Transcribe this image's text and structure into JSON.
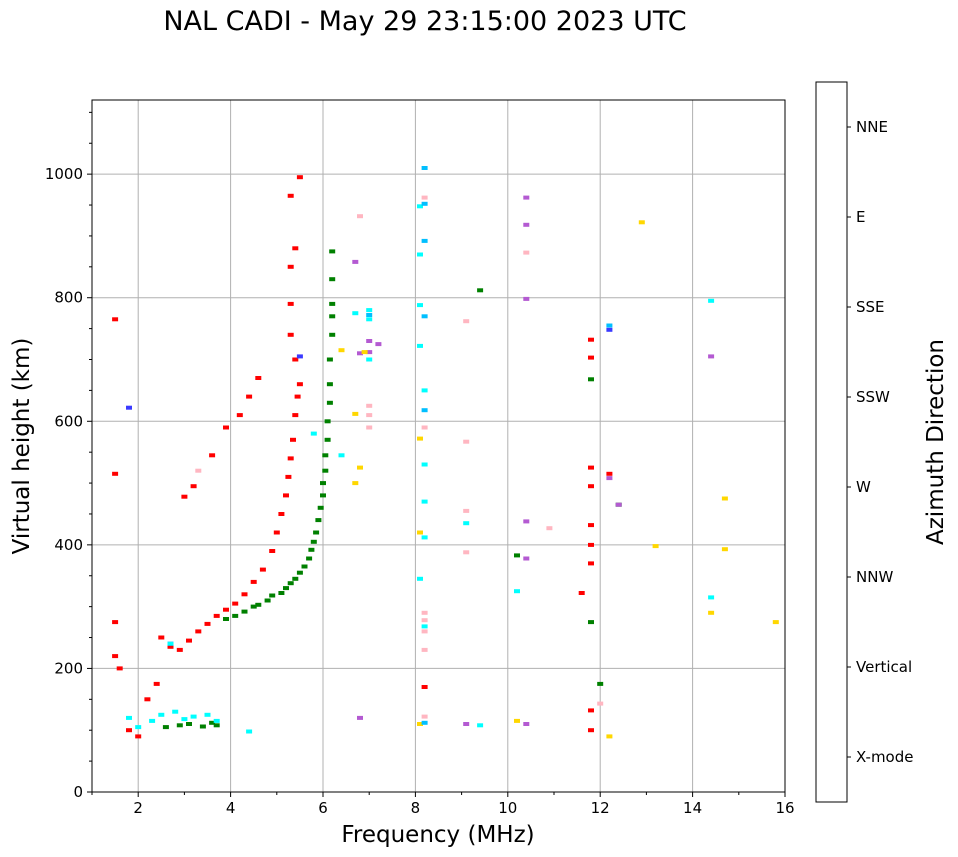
{
  "title": "NAL CADI - May 29 23:15:00 2023 UTC",
  "chart_data": {
    "type": "scatter",
    "title": "NAL CADI - May 29 23:15:00 2023 UTC",
    "xlabel": "Frequency (MHz)",
    "ylabel": "Virtual height (km)",
    "xlim": [
      1,
      16
    ],
    "ylim": [
      0,
      1120
    ],
    "xticks": [
      2,
      4,
      6,
      8,
      10,
      12,
      14,
      16
    ],
    "yticks": [
      0,
      200,
      400,
      600,
      800,
      1000
    ],
    "grid": true,
    "colorbar": {
      "label": "Azimuth Direction",
      "categories": [
        "X-mode",
        "Vertical",
        "NNW",
        "W",
        "SSW",
        "SSE",
        "E",
        "NNE"
      ],
      "colors": [
        "#008000",
        "#ff0000",
        "#3a3aff",
        "#b45ad2",
        "#ffb6c1",
        "#ffd700",
        "#00ffff",
        "#00bfff"
      ]
    },
    "series": [
      {
        "name": "X-mode",
        "points": [
          [
            2.6,
            105
          ],
          [
            2.9,
            108
          ],
          [
            3.1,
            110
          ],
          [
            3.4,
            106
          ],
          [
            3.6,
            112
          ],
          [
            3.7,
            108
          ],
          [
            3.9,
            280
          ],
          [
            4.1,
            285
          ],
          [
            4.3,
            292
          ],
          [
            4.5,
            300
          ],
          [
            4.6,
            303
          ],
          [
            4.8,
            310
          ],
          [
            4.9,
            318
          ],
          [
            5.1,
            322
          ],
          [
            5.2,
            330
          ],
          [
            5.3,
            338
          ],
          [
            5.4,
            345
          ],
          [
            5.5,
            355
          ],
          [
            5.6,
            365
          ],
          [
            5.7,
            378
          ],
          [
            5.75,
            392
          ],
          [
            5.8,
            405
          ],
          [
            5.85,
            420
          ],
          [
            5.9,
            440
          ],
          [
            5.95,
            460
          ],
          [
            6.0,
            480
          ],
          [
            6.0,
            500
          ],
          [
            6.05,
            520
          ],
          [
            6.05,
            545
          ],
          [
            6.1,
            570
          ],
          [
            6.1,
            600
          ],
          [
            6.15,
            630
          ],
          [
            6.15,
            660
          ],
          [
            6.15,
            700
          ],
          [
            6.2,
            740
          ],
          [
            6.2,
            770
          ],
          [
            6.2,
            790
          ],
          [
            6.2,
            830
          ],
          [
            6.2,
            875
          ],
          [
            9.4,
            812
          ],
          [
            10.2,
            383
          ],
          [
            11.8,
            668
          ],
          [
            11.8,
            275
          ],
          [
            12.4,
            465
          ],
          [
            12.0,
            175
          ]
        ]
      },
      {
        "name": "Vertical",
        "points": [
          [
            1.5,
            765
          ],
          [
            1.5,
            515
          ],
          [
            1.5,
            275
          ],
          [
            1.5,
            220
          ],
          [
            1.6,
            200
          ],
          [
            1.8,
            100
          ],
          [
            2.0,
            90
          ],
          [
            2.2,
            150
          ],
          [
            2.4,
            175
          ],
          [
            2.5,
            250
          ],
          [
            2.7,
            235
          ],
          [
            2.9,
            230
          ],
          [
            3.1,
            245
          ],
          [
            3.3,
            260
          ],
          [
            3.5,
            272
          ],
          [
            3.7,
            285
          ],
          [
            3.9,
            295
          ],
          [
            4.1,
            305
          ],
          [
            4.3,
            320
          ],
          [
            4.5,
            340
          ],
          [
            4.7,
            360
          ],
          [
            4.9,
            390
          ],
          [
            5.0,
            420
          ],
          [
            5.1,
            450
          ],
          [
            5.2,
            480
          ],
          [
            5.25,
            510
          ],
          [
            5.3,
            540
          ],
          [
            5.35,
            570
          ],
          [
            5.4,
            610
          ],
          [
            5.45,
            640
          ],
          [
            5.5,
            660
          ],
          [
            5.4,
            700
          ],
          [
            5.3,
            740
          ],
          [
            5.3,
            790
          ],
          [
            5.3,
            850
          ],
          [
            5.4,
            880
          ],
          [
            5.3,
            965
          ],
          [
            5.5,
            995
          ],
          [
            4.6,
            670
          ],
          [
            4.4,
            640
          ],
          [
            4.2,
            610
          ],
          [
            3.9,
            590
          ],
          [
            3.6,
            545
          ],
          [
            3.2,
            495
          ],
          [
            3.0,
            478
          ],
          [
            8.2,
            170
          ],
          [
            11.8,
            732
          ],
          [
            11.8,
            703
          ],
          [
            11.8,
            525
          ],
          [
            11.8,
            495
          ],
          [
            11.8,
            432
          ],
          [
            11.8,
            400
          ],
          [
            11.8,
            370
          ],
          [
            11.8,
            132
          ],
          [
            11.8,
            100
          ],
          [
            11.6,
            322
          ],
          [
            12.2,
            515
          ]
        ]
      },
      {
        "name": "NNW",
        "points": [
          [
            1.8,
            622
          ],
          [
            2.7,
            240
          ],
          [
            5.5,
            705
          ],
          [
            12.2,
            748
          ]
        ]
      },
      {
        "name": "W",
        "points": [
          [
            6.7,
            858
          ],
          [
            6.8,
            710
          ],
          [
            7.2,
            725
          ],
          [
            7.0,
            712
          ],
          [
            6.8,
            120
          ],
          [
            9.1,
            110
          ],
          [
            10.4,
            962
          ],
          [
            10.4,
            918
          ],
          [
            10.4,
            798
          ],
          [
            10.4,
            438
          ],
          [
            10.4,
            378
          ],
          [
            10.4,
            110
          ],
          [
            12.2,
            508
          ],
          [
            12.4,
            465
          ],
          [
            14.4,
            705
          ],
          [
            7.0,
            730
          ]
        ]
      },
      {
        "name": "SSW",
        "points": [
          [
            8.2,
            962
          ],
          [
            8.2,
            590
          ],
          [
            8.2,
            290
          ],
          [
            8.2,
            278
          ],
          [
            8.2,
            260
          ],
          [
            8.2,
            230
          ],
          [
            8.2,
            122
          ],
          [
            9.1,
            762
          ],
          [
            9.1,
            567
          ],
          [
            9.1,
            455
          ],
          [
            9.1,
            388
          ],
          [
            10.4,
            873
          ],
          [
            10.9,
            427
          ],
          [
            6.8,
            932
          ],
          [
            7.0,
            625
          ],
          [
            7.0,
            610
          ],
          [
            7.0,
            590
          ],
          [
            12.0,
            143
          ],
          [
            3.3,
            520
          ]
        ]
      },
      {
        "name": "SSE",
        "points": [
          [
            6.4,
            715
          ],
          [
            6.7,
            612
          ],
          [
            6.8,
            525
          ],
          [
            6.7,
            500
          ],
          [
            8.1,
            572
          ],
          [
            8.1,
            420
          ],
          [
            8.1,
            110
          ],
          [
            10.2,
            115
          ],
          [
            12.2,
            90
          ],
          [
            12.9,
            922
          ],
          [
            13.2,
            398
          ],
          [
            14.4,
            290
          ],
          [
            14.7,
            475
          ],
          [
            14.7,
            393
          ],
          [
            15.8,
            275
          ],
          [
            6.9,
            712
          ]
        ]
      },
      {
        "name": "E",
        "points": [
          [
            1.8,
            120
          ],
          [
            2.0,
            105
          ],
          [
            2.3,
            115
          ],
          [
            2.5,
            125
          ],
          [
            2.8,
            130
          ],
          [
            3.0,
            118
          ],
          [
            3.2,
            122
          ],
          [
            3.5,
            125
          ],
          [
            3.7,
            115
          ],
          [
            4.4,
            98
          ],
          [
            6.7,
            775
          ],
          [
            7.0,
            780
          ],
          [
            7.0,
            765
          ],
          [
            7.0,
            700
          ],
          [
            8.1,
            948
          ],
          [
            8.1,
            870
          ],
          [
            8.1,
            788
          ],
          [
            8.1,
            722
          ],
          [
            8.1,
            345
          ],
          [
            8.2,
            650
          ],
          [
            8.2,
            530
          ],
          [
            8.2,
            470
          ],
          [
            8.2,
            412
          ],
          [
            8.2,
            268
          ],
          [
            9.1,
            435
          ],
          [
            9.4,
            108
          ],
          [
            10.2,
            325
          ],
          [
            14.4,
            795
          ],
          [
            14.4,
            315
          ],
          [
            5.8,
            580
          ],
          [
            6.4,
            545
          ],
          [
            2.7,
            240
          ]
        ]
      },
      {
        "name": "NNE",
        "points": [
          [
            8.2,
            1010
          ],
          [
            8.2,
            952
          ],
          [
            8.2,
            892
          ],
          [
            8.2,
            770
          ],
          [
            8.2,
            618
          ],
          [
            12.2,
            755
          ],
          [
            7.0,
            772
          ],
          [
            8.2,
            112
          ]
        ]
      }
    ]
  }
}
